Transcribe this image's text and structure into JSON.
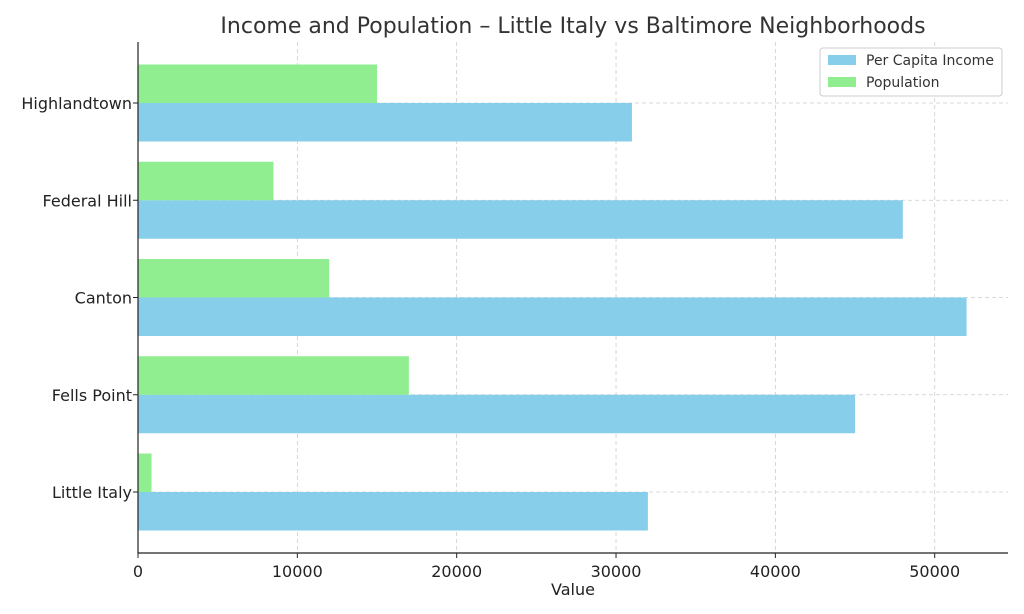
{
  "chart_data": {
    "type": "bar",
    "orientation": "horizontal",
    "title": "Income and Population – Little Italy vs Baltimore Neighborhoods",
    "xlabel": "Value",
    "ylabel": "",
    "categories": [
      "Little Italy",
      "Fells Point",
      "Canton",
      "Federal Hill",
      "Highlandtown"
    ],
    "series": [
      {
        "name": "Per Capita Income",
        "color": "#87ceeb",
        "values": [
          32000,
          45000,
          52000,
          48000,
          31000
        ]
      },
      {
        "name": "Population",
        "color": "#90ee90",
        "values": [
          850,
          17000,
          12000,
          8500,
          15000
        ]
      }
    ],
    "xlim": [
      0,
      54600
    ],
    "xticks": [
      0,
      10000,
      20000,
      30000,
      40000,
      50000
    ],
    "grid": true,
    "legend": "top-right"
  }
}
